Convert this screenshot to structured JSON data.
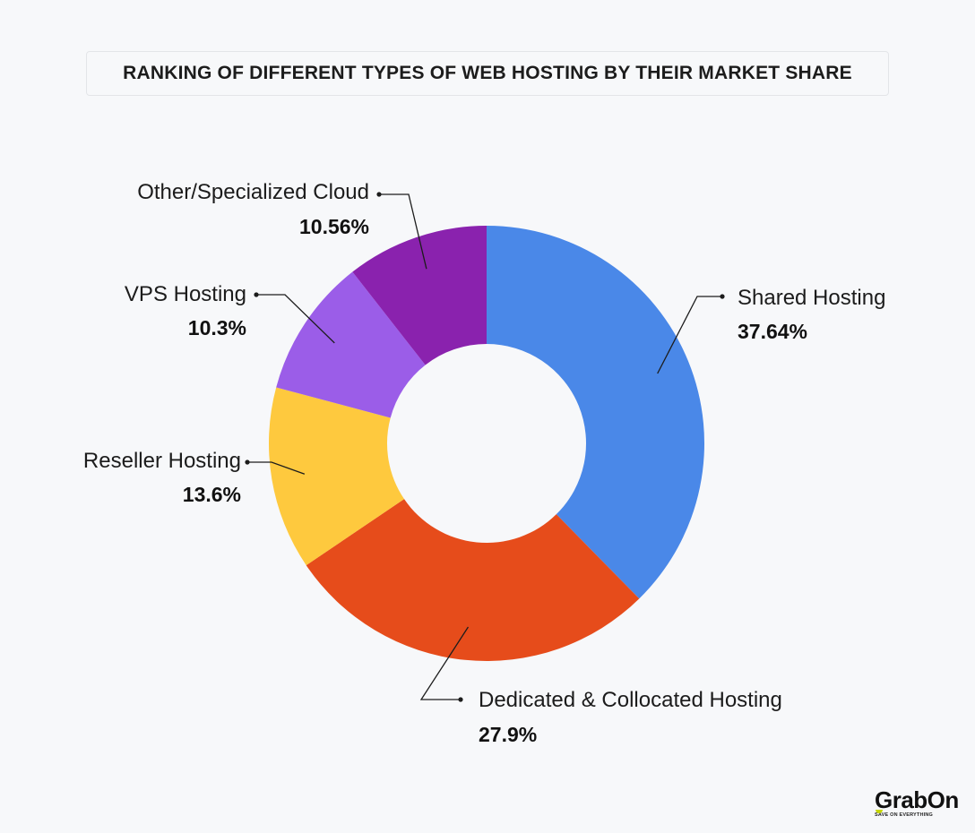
{
  "chart_data": {
    "type": "pie",
    "title": "RANKING OF DIFFERENT TYPES OF WEB HOSTING BY THEIR MARKET SHARE",
    "categories": [
      "Shared Hosting",
      "Dedicated & Collocated Hosting",
      "Reseller Hosting",
      "VPS Hosting",
      "Other/Specialized Cloud"
    ],
    "values": [
      37.64,
      27.9,
      13.6,
      10.3,
      10.56
    ],
    "value_labels": [
      "37.64%",
      "27.9%",
      "13.6%",
      "10.3%",
      "10.56%"
    ],
    "colors": [
      "#4a88e8",
      "#e64c1b",
      "#fec93e",
      "#9b5de8",
      "#8a22ae"
    ],
    "donut": true,
    "start": "top",
    "direction": "clockwise"
  },
  "logo": {
    "name": "GrabOn",
    "tagline": "SAVE ON EVERYTHING"
  }
}
